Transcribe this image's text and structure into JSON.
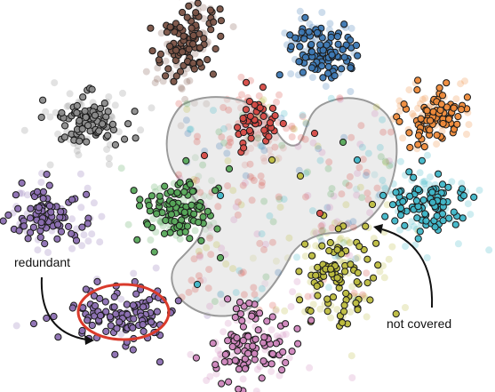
{
  "annotations": {
    "redundant": "redundant",
    "not_covered": "not covered"
  },
  "colors": {
    "redundant_outline": "#d93a2b",
    "coverage_region_fill": "#d9d9d9",
    "coverage_region_stroke": "#9a9a9a",
    "arrow": "#111111",
    "point_outline": "#1a1a1a"
  },
  "clusters": [
    {
      "name": "brown",
      "color": "#7a5346"
    },
    {
      "name": "blue",
      "color": "#3d78b3"
    },
    {
      "name": "gray",
      "color": "#8c8c8c"
    },
    {
      "name": "red",
      "color": "#d64a44"
    },
    {
      "name": "orange",
      "color": "#ee8a3a"
    },
    {
      "name": "purple",
      "color": "#8c6fb2"
    },
    {
      "name": "green",
      "color": "#57a85a"
    },
    {
      "name": "cyan",
      "color": "#3fb6c8"
    },
    {
      "name": "olive",
      "color": "#bdbc3e"
    },
    {
      "name": "pink",
      "color": "#cf86bd"
    }
  ]
}
